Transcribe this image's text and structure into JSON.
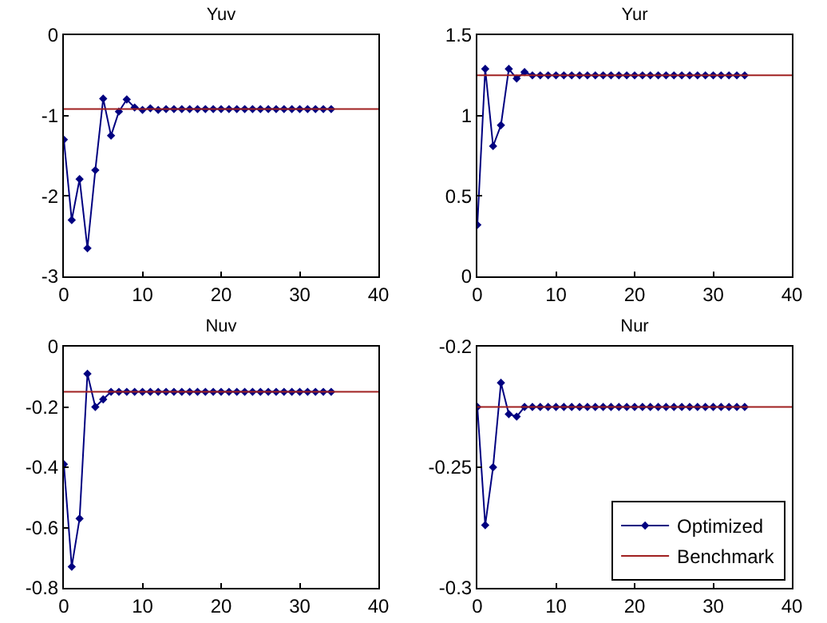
{
  "chart_data": [
    {
      "type": "line",
      "title": "Yuv",
      "xlim": [
        0,
        40
      ],
      "xticks": [
        0,
        10,
        20,
        30,
        40
      ],
      "ylim": [
        -3,
        0
      ],
      "yticks": [
        -3,
        -2,
        -1,
        0
      ],
      "marker": "diamond",
      "series": [
        {
          "color": "#000080",
          "x": [
            0,
            1,
            2,
            3,
            4,
            5,
            6,
            7,
            8,
            9,
            10,
            11,
            12,
            13,
            14,
            15,
            16,
            17,
            18,
            19,
            20,
            21,
            22,
            23,
            24,
            25,
            26,
            27,
            28,
            29,
            30,
            31,
            32,
            33,
            34
          ],
          "values": [
            -1.3,
            -2.3,
            -1.79,
            -2.65,
            -1.68,
            -0.79,
            -1.25,
            -0.95,
            -0.8,
            -0.9,
            -0.93,
            -0.91,
            -0.93,
            -0.92,
            -0.92,
            -0.92,
            -0.92,
            -0.92,
            -0.92,
            -0.92,
            -0.92,
            -0.92,
            -0.92,
            -0.92,
            -0.92,
            -0.92,
            -0.92,
            -0.92,
            -0.92,
            -0.92,
            -0.92,
            -0.92,
            -0.92,
            -0.92,
            -0.92
          ]
        },
        {
          "color": "#a02020",
          "marker": "none",
          "x": [
            0,
            40
          ],
          "values": [
            -0.92,
            -0.92
          ]
        }
      ]
    },
    {
      "type": "line",
      "title": "Yur",
      "xlim": [
        0,
        40
      ],
      "xticks": [
        0,
        10,
        20,
        30,
        40
      ],
      "ylim": [
        0,
        1.5
      ],
      "yticks": [
        0,
        0.5,
        1,
        1.5
      ],
      "marker": "diamond",
      "series": [
        {
          "color": "#000080",
          "x": [
            0,
            1,
            2,
            3,
            4,
            5,
            6,
            7,
            8,
            9,
            10,
            11,
            12,
            13,
            14,
            15,
            16,
            17,
            18,
            19,
            20,
            21,
            22,
            23,
            24,
            25,
            26,
            27,
            28,
            29,
            30,
            31,
            32,
            33,
            34
          ],
          "values": [
            0.32,
            1.29,
            0.81,
            0.94,
            1.29,
            1.23,
            1.27,
            1.25,
            1.25,
            1.25,
            1.25,
            1.25,
            1.25,
            1.25,
            1.25,
            1.25,
            1.25,
            1.25,
            1.25,
            1.25,
            1.25,
            1.25,
            1.25,
            1.25,
            1.25,
            1.25,
            1.25,
            1.25,
            1.25,
            1.25,
            1.25,
            1.25,
            1.25,
            1.25,
            1.25
          ]
        },
        {
          "color": "#a02020",
          "marker": "none",
          "x": [
            0,
            40
          ],
          "values": [
            1.25,
            1.25
          ]
        }
      ]
    },
    {
      "type": "line",
      "title": "Nuv",
      "xlim": [
        0,
        40
      ],
      "xticks": [
        0,
        10,
        20,
        30,
        40
      ],
      "ylim": [
        -0.8,
        0
      ],
      "yticks": [
        -0.8,
        -0.6,
        -0.4,
        -0.2,
        0
      ],
      "marker": "diamond",
      "series": [
        {
          "color": "#000080",
          "x": [
            0,
            1,
            2,
            3,
            4,
            5,
            6,
            7,
            8,
            9,
            10,
            11,
            12,
            13,
            14,
            15,
            16,
            17,
            18,
            19,
            20,
            21,
            22,
            23,
            24,
            25,
            26,
            27,
            28,
            29,
            30,
            31,
            32,
            33,
            34
          ],
          "values": [
            -0.39,
            -0.73,
            -0.57,
            -0.09,
            -0.2,
            -0.175,
            -0.15,
            -0.15,
            -0.15,
            -0.15,
            -0.15,
            -0.15,
            -0.15,
            -0.15,
            -0.15,
            -0.15,
            -0.15,
            -0.15,
            -0.15,
            -0.15,
            -0.15,
            -0.15,
            -0.15,
            -0.15,
            -0.15,
            -0.15,
            -0.15,
            -0.15,
            -0.15,
            -0.15,
            -0.15,
            -0.15,
            -0.15,
            -0.15,
            -0.15
          ]
        },
        {
          "color": "#a02020",
          "marker": "none",
          "x": [
            0,
            40
          ],
          "values": [
            -0.15,
            -0.15
          ]
        }
      ]
    },
    {
      "type": "line",
      "title": "Nur",
      "xlim": [
        0,
        40
      ],
      "xticks": [
        0,
        10,
        20,
        30,
        40
      ],
      "ylim": [
        -0.3,
        -0.2
      ],
      "yticks": [
        -0.3,
        -0.25,
        -0.2
      ],
      "marker": "diamond",
      "legend": "bottom right",
      "series": [
        {
          "name": "Optimized",
          "color": "#000080",
          "x": [
            0,
            1,
            2,
            3,
            4,
            5,
            6,
            7,
            8,
            9,
            10,
            11,
            12,
            13,
            14,
            15,
            16,
            17,
            18,
            19,
            20,
            21,
            22,
            23,
            24,
            25,
            26,
            27,
            28,
            29,
            30,
            31,
            32,
            33,
            34
          ],
          "values": [
            -0.225,
            -0.274,
            -0.25,
            -0.215,
            -0.228,
            -0.229,
            -0.225,
            -0.225,
            -0.225,
            -0.225,
            -0.225,
            -0.225,
            -0.225,
            -0.225,
            -0.225,
            -0.225,
            -0.225,
            -0.225,
            -0.225,
            -0.225,
            -0.225,
            -0.225,
            -0.225,
            -0.225,
            -0.225,
            -0.225,
            -0.225,
            -0.225,
            -0.225,
            -0.225,
            -0.225,
            -0.225,
            -0.225,
            -0.225,
            -0.225
          ]
        },
        {
          "name": "Benchmark",
          "color": "#a02020",
          "marker": "none",
          "x": [
            0,
            40
          ],
          "values": [
            -0.225,
            -0.225
          ]
        }
      ]
    }
  ]
}
